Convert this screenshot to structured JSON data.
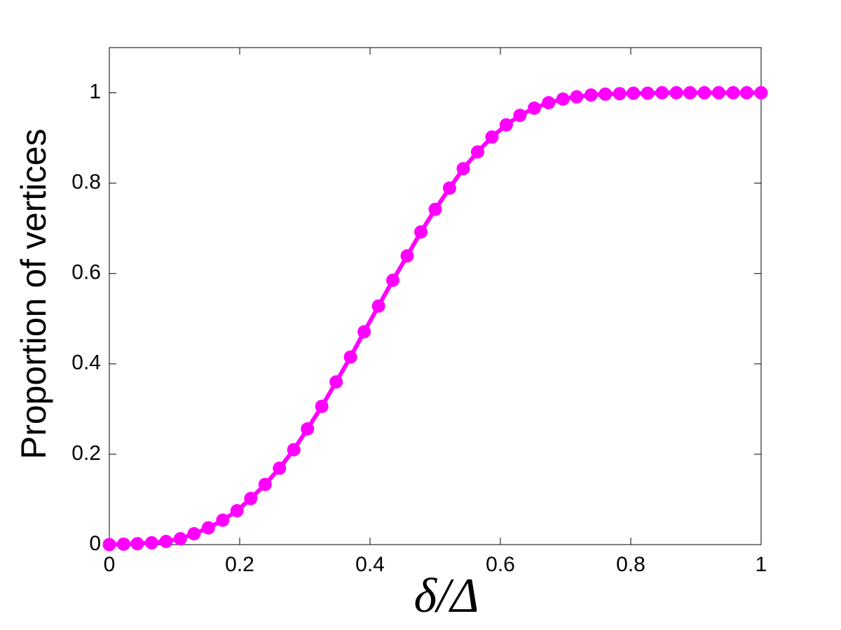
{
  "chart_data": {
    "type": "line",
    "xlabel": "δ/Δ",
    "ylabel": "Proportion of vertices",
    "x": [
      0,
      0.022,
      0.043,
      0.065,
      0.087,
      0.109,
      0.13,
      0.152,
      0.174,
      0.196,
      0.217,
      0.239,
      0.261,
      0.283,
      0.304,
      0.326,
      0.348,
      0.37,
      0.391,
      0.413,
      0.435,
      0.457,
      0.478,
      0.5,
      0.522,
      0.543,
      0.565,
      0.587,
      0.609,
      0.63,
      0.652,
      0.674,
      0.696,
      0.717,
      0.739,
      0.761,
      0.783,
      0.804,
      0.826,
      0.848,
      0.87,
      0.891,
      0.913,
      0.935,
      0.957,
      0.978,
      1
    ],
    "values": [
      0,
      0.001,
      0.002,
      0.004,
      0.007,
      0.013,
      0.024,
      0.037,
      0.054,
      0.075,
      0.102,
      0.133,
      0.169,
      0.21,
      0.256,
      0.306,
      0.36,
      0.415,
      0.471,
      0.528,
      0.585,
      0.639,
      0.692,
      0.742,
      0.789,
      0.832,
      0.869,
      0.902,
      0.929,
      0.95,
      0.966,
      0.978,
      0.986,
      0.991,
      0.995,
      0.997,
      0.998,
      0.999,
      0.999,
      1,
      1,
      1,
      1,
      1,
      1,
      1,
      1
    ],
    "color": "#ff00ff",
    "xlim": [
      0,
      1
    ],
    "xticks": [
      0,
      0.2,
      0.4,
      0.6,
      0.8,
      1
    ],
    "ylim": [
      0,
      1.1
    ],
    "yticks": [
      0,
      0.2,
      0.4,
      0.6,
      0.8,
      1
    ],
    "grid": false
  }
}
